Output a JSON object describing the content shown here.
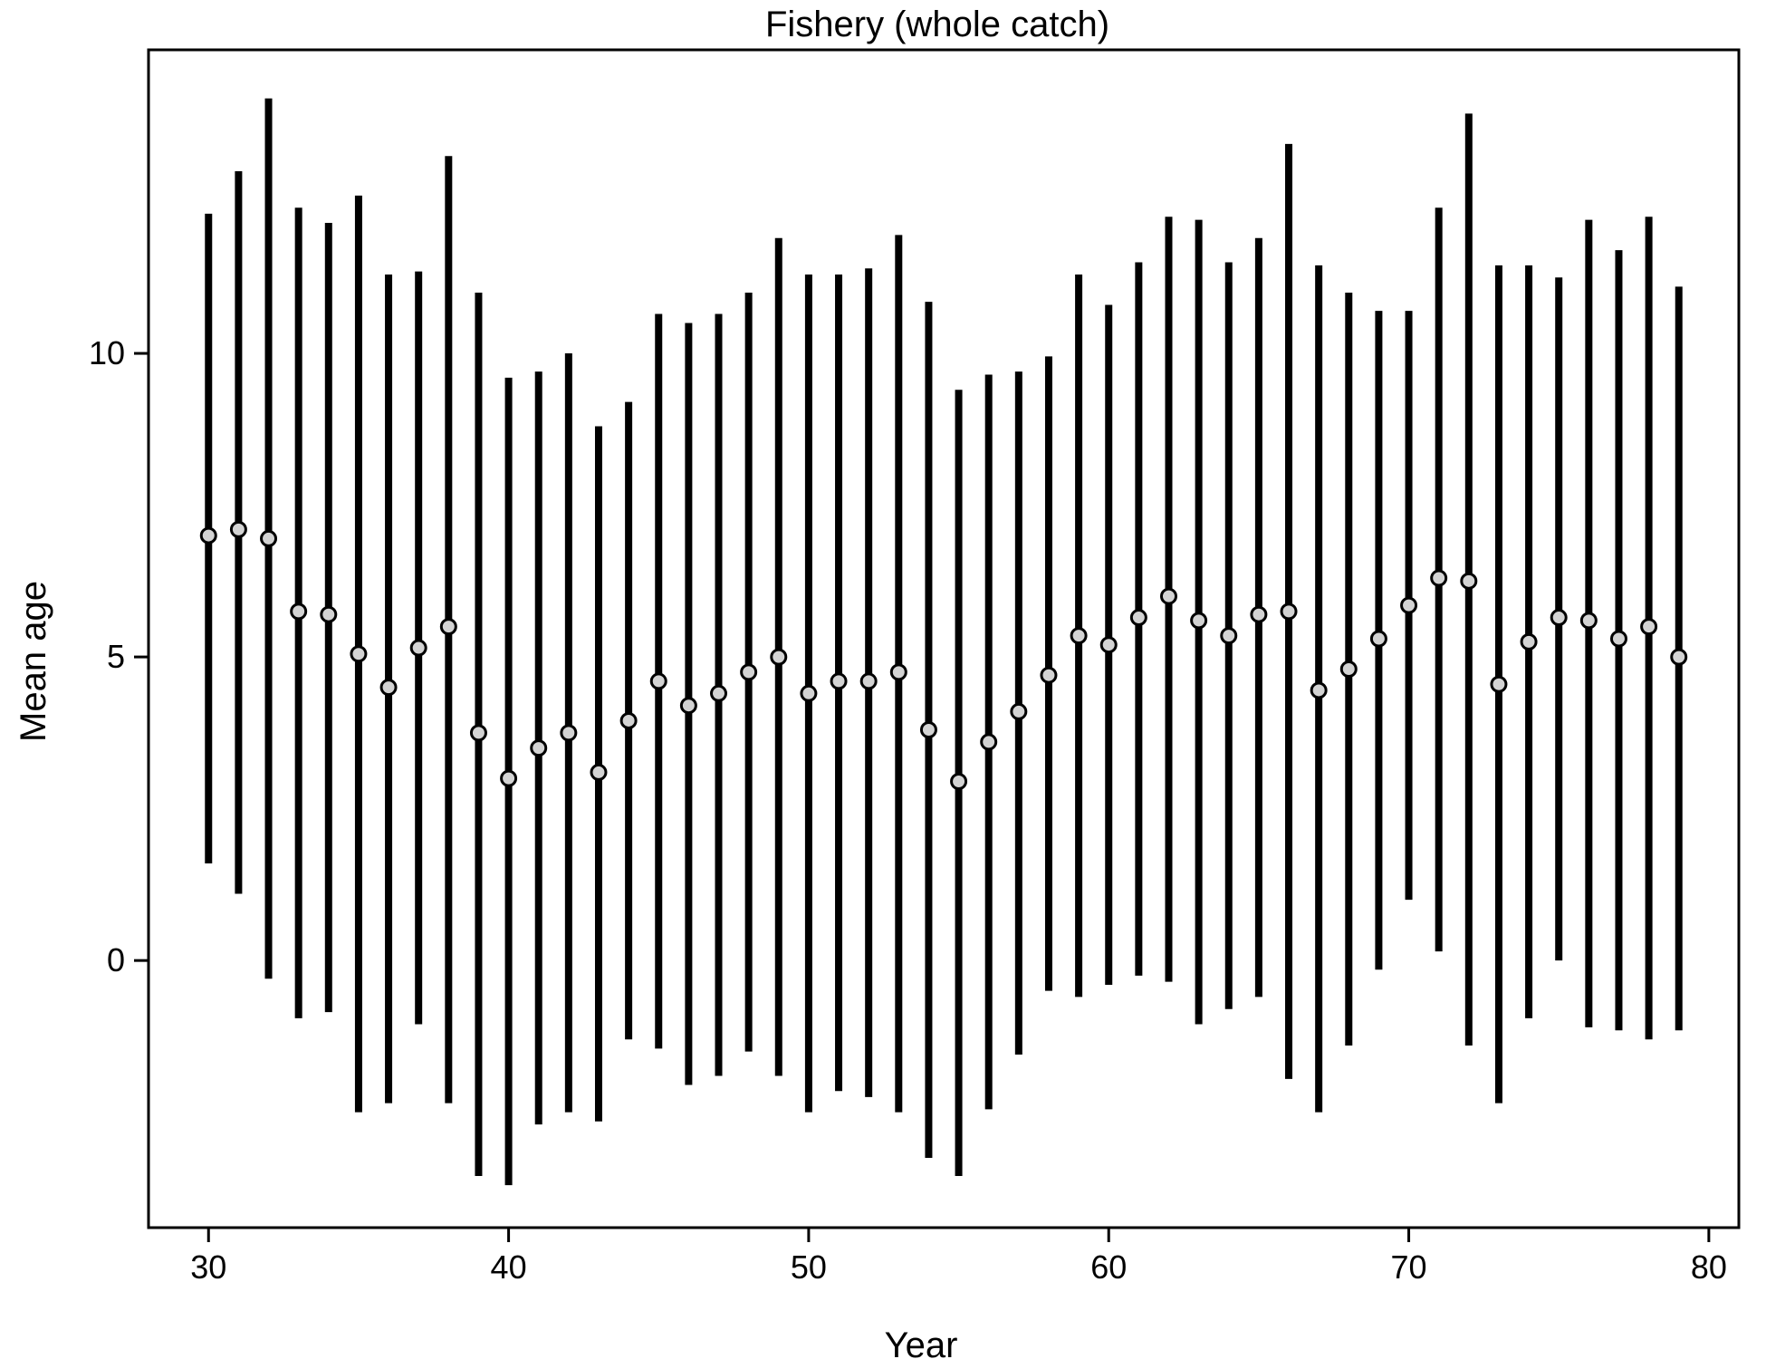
{
  "chart_data": {
    "type": "scatter",
    "title": "Fishery (whole catch)",
    "xlabel": "Year",
    "ylabel": "Mean age",
    "xlim": [
      28,
      81
    ],
    "ylim": [
      -4.4,
      15
    ],
    "x_ticks": [
      30,
      40,
      50,
      60,
      70,
      80
    ],
    "y_ticks": [
      0,
      5,
      10
    ],
    "grid": false,
    "legend": "none",
    "colors": {
      "interval": "#000000",
      "point_fill": "#d3d3d3",
      "point_stroke": "#000000",
      "frame": "#000000"
    },
    "series": [
      {
        "x": [
          30,
          31,
          32,
          33,
          34,
          35,
          36,
          37,
          38,
          39,
          40,
          41,
          42,
          43,
          44,
          45,
          46,
          47,
          48,
          49,
          50,
          51,
          52,
          53,
          54,
          55,
          56,
          57,
          58,
          59,
          60,
          61,
          62,
          63,
          64,
          65,
          66,
          67,
          68,
          69,
          70,
          71,
          72,
          73,
          74,
          75,
          76,
          77,
          78,
          79
        ],
        "mean": [
          7.0,
          7.1,
          6.95,
          5.75,
          5.7,
          5.05,
          4.5,
          5.15,
          5.5,
          3.75,
          3.0,
          3.5,
          3.75,
          3.1,
          3.95,
          4.6,
          4.2,
          4.4,
          4.75,
          5.0,
          4.4,
          4.6,
          4.6,
          4.75,
          3.8,
          2.95,
          3.6,
          4.1,
          4.7,
          5.35,
          5.2,
          5.65,
          6.0,
          5.6,
          5.35,
          5.7,
          5.75,
          4.45,
          4.8,
          5.3,
          5.85,
          6.3,
          6.25,
          4.55,
          5.25,
          5.65,
          5.6,
          5.3,
          5.5,
          5.0
        ],
        "lower": [
          1.6,
          1.1,
          -0.3,
          -0.95,
          -0.85,
          -2.5,
          -2.35,
          -1.05,
          -2.35,
          -3.55,
          -3.7,
          -2.7,
          -2.5,
          -2.65,
          -1.3,
          -1.45,
          -2.05,
          -1.9,
          -1.5,
          -1.9,
          -2.5,
          -2.15,
          -2.25,
          -2.5,
          -3.25,
          -3.55,
          -2.45,
          -1.55,
          -0.5,
          -0.6,
          -0.4,
          -0.25,
          -0.35,
          -1.05,
          -0.8,
          -0.6,
          -1.95,
          -2.5,
          -1.4,
          -0.15,
          1.0,
          0.15,
          -1.4,
          -2.35,
          -0.95,
          0.0,
          -1.1,
          -1.15,
          -1.3,
          -1.15
        ],
        "upper": [
          12.3,
          13.0,
          14.2,
          12.4,
          12.15,
          12.6,
          11.3,
          11.35,
          13.25,
          11.0,
          9.6,
          9.7,
          10.0,
          8.8,
          9.2,
          10.65,
          10.5,
          10.65,
          11.0,
          11.9,
          11.3,
          11.3,
          11.4,
          11.95,
          10.85,
          9.4,
          9.65,
          9.7,
          9.95,
          11.3,
          10.8,
          11.5,
          12.25,
          12.2,
          11.5,
          11.9,
          13.45,
          11.45,
          11.0,
          10.7,
          10.7,
          12.4,
          13.95,
          11.45,
          11.45,
          11.25,
          12.2,
          11.7,
          12.25,
          11.1
        ]
      }
    ]
  }
}
